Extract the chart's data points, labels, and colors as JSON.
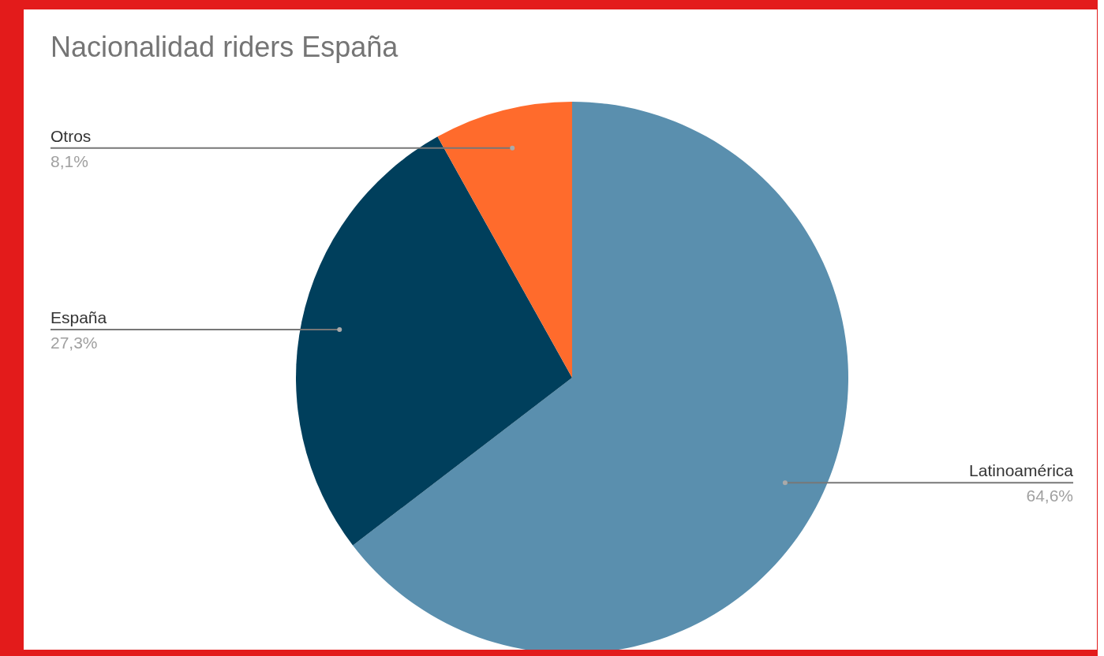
{
  "chart_data": {
    "type": "pie",
    "title": "Nacionalidad riders España",
    "categories": [
      "Latinoamérica",
      "España",
      "Otros"
    ],
    "values": [
      64.6,
      27.3,
      8.1
    ],
    "colors": [
      "#5a8fae",
      "#003f5c",
      "#ff6b2c"
    ],
    "value_labels": [
      "64,6%",
      "27,3%",
      "8,1%"
    ]
  }
}
